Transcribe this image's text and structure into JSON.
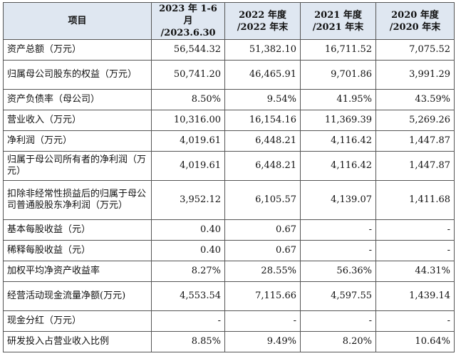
{
  "table": {
    "headers": [
      [
        "项目"
      ],
      [
        "2023 年 1-6 月",
        "/2023.6.30"
      ],
      [
        "2022 年度",
        "/2022 年末"
      ],
      [
        "2021 年度",
        "/2021 年末"
      ],
      [
        "2020 年度",
        "/2020 年末"
      ]
    ],
    "rows": [
      {
        "label": "资产总额（万元）",
        "values": [
          "56,544.32",
          "51,382.10",
          "16,711.52",
          "7,075.52"
        ]
      },
      {
        "label": "归属母公司股东的权益（万元）",
        "values": [
          "50,741.20",
          "46,465.91",
          "9,701.86",
          "3,991.29"
        ]
      },
      {
        "label": "资产负债率（母公司）",
        "values": [
          "8.50%",
          "9.54%",
          "41.95%",
          "43.59%"
        ]
      },
      {
        "label": "营业收入（万元）",
        "values": [
          "10,316.00",
          "16,154.16",
          "11,369.39",
          "5,269.26"
        ]
      },
      {
        "label": "净利润（万元）",
        "values": [
          "4,019.61",
          "6,448.21",
          "4,116.42",
          "1,447.87"
        ]
      },
      {
        "label": "归属于母公司所有者的净利润（万元）",
        "values": [
          "4,019.61",
          "6,448.21",
          "4,116.42",
          "1,447.87"
        ]
      },
      {
        "label": "扣除非经常性损益后的归属于母公司普通股股东净利润（万元）",
        "values": [
          "3,952.12",
          "6,105.57",
          "4,139.07",
          "1,411.68"
        ]
      },
      {
        "label": "基本每股收益（元）",
        "values": [
          "0.40",
          "0.67",
          "-",
          "-"
        ]
      },
      {
        "label": "稀释每股收益（元）",
        "values": [
          "0.40",
          "0.67",
          "-",
          "-"
        ]
      },
      {
        "label": "加权平均净资产收益率",
        "values": [
          "8.27%",
          "28.55%",
          "56.36%",
          "44.31%"
        ]
      },
      {
        "label": "经营活动现金流量净额(万元)",
        "values": [
          "4,553.54",
          "7,115.66",
          "4,597.55",
          "1,439.14"
        ]
      },
      {
        "label": "现金分红（万元）",
        "values": [
          "-",
          "-",
          "-",
          "-"
        ]
      },
      {
        "label": "研发投入占营业收入比例",
        "values": [
          "8.85%",
          "9.49%",
          "8.20%",
          "10.64%"
        ]
      }
    ]
  }
}
